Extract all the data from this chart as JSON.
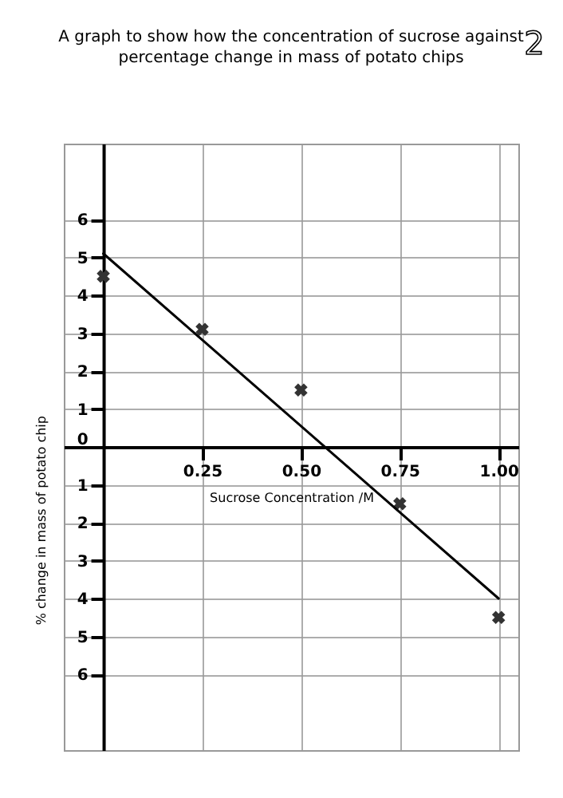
{
  "chart_data": {
    "type": "scatter",
    "title": "A graph to show how the concentration of sucrose against\npercentage change in mass of potato chips",
    "xlabel": "Sucrose Concentration /M",
    "ylabel": "% change in mass of potato chip",
    "annotations": [
      "2"
    ],
    "xlim": [
      -0.1,
      1.05
    ],
    "ylim": [
      -8,
      8
    ],
    "xticks": [
      {
        "value": 0.25,
        "label": "0.25"
      },
      {
        "value": 0.5,
        "label": "0.50"
      },
      {
        "value": 0.75,
        "label": "0.75"
      },
      {
        "value": 1,
        "label": "1.00"
      }
    ],
    "yticks": [
      {
        "value": -6,
        "label": "6"
      },
      {
        "value": -5,
        "label": "5"
      },
      {
        "value": -4,
        "label": "4"
      },
      {
        "value": -3,
        "label": "3"
      },
      {
        "value": -2,
        "label": "2"
      },
      {
        "value": -1,
        "label": "1"
      },
      0,
      1,
      2,
      3,
      4,
      5,
      6
    ],
    "grid": true,
    "marker": "cross",
    "series": [
      {
        "color": "#333333",
        "x": [
          0,
          0.25,
          0.5,
          0.75,
          1.0
        ],
        "values": [
          4.5,
          3.1,
          1.5,
          -1.5,
          -4.5
        ]
      },
      {
        "type": "line",
        "color": "#000000",
        "marker": "none",
        "x": [
          0,
          1.0
        ],
        "values": [
          5.1,
          -4.0
        ]
      }
    ]
  }
}
